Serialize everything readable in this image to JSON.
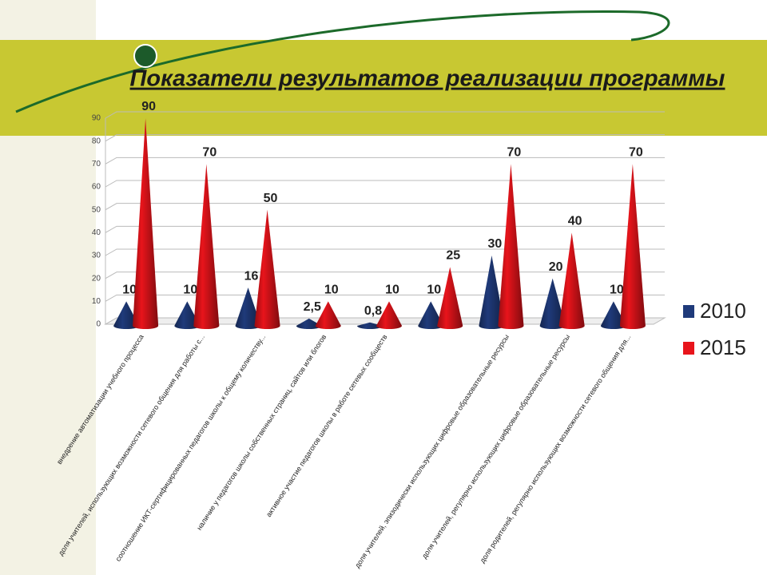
{
  "chart_data": {
    "type": "cone",
    "title": "Показатели  результатов реализации программы",
    "categories": [
      "внедрение автоматизации учебного процесса",
      "доля учителей, использующих возможности сетевого общения для работы с...",
      "соотношение ИКТ-сертифицированных педагогов школы к общему количеству...",
      "наличие у педагогов школы собственных страниц, сайтов или блогов",
      "активное участие педагогов школы в работе сетевых сообществ",
      null,
      "доля учителей, эпизодически использующих цифровые образовательные ресурсы",
      "доля учителей,  регулярно использующих  цифровые образовательные ресурсы",
      "доля родителей, регулярно использующих возможности сетевого общения для..."
    ],
    "series": [
      {
        "name": "2010",
        "color": "#1f3a7a",
        "values": [
          10,
          10,
          16,
          2.5,
          0.8,
          10,
          30,
          20,
          10
        ],
        "value_labels": [
          "10",
          "10",
          "16",
          "2,5",
          "0,8",
          "10",
          "30",
          "20",
          "10"
        ]
      },
      {
        "name": "2015",
        "color": "#e8141b",
        "values": [
          90,
          70,
          50,
          10,
          10,
          25,
          70,
          40,
          70
        ],
        "value_labels": [
          "90",
          "70",
          "50",
          "10",
          "10",
          "25",
          "70",
          "40",
          "70"
        ]
      }
    ],
    "ylim": [
      0,
      90
    ],
    "yticks": [
      0,
      10,
      20,
      30,
      40,
      50,
      60,
      70,
      80,
      90
    ],
    "grid": true,
    "legend": "right"
  }
}
